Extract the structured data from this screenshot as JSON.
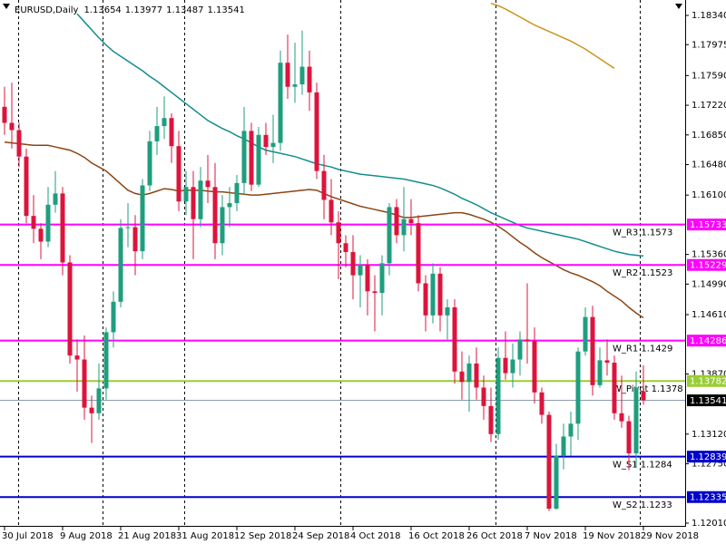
{
  "chart_data": {
    "type": "candlestick",
    "title": "EURUSD,Daily",
    "categories": [
      "30 Jul 2018",
      null,
      null,
      null,
      null,
      null,
      null,
      null,
      "9 Aug 2018",
      null,
      null,
      null,
      null,
      null,
      null,
      null,
      "21 Aug 2018",
      null,
      null,
      null,
      null,
      null,
      null,
      null,
      "31 Aug 2018",
      null,
      null,
      null,
      null,
      null,
      null,
      null,
      "12 Sep 2018",
      null,
      null,
      null,
      null,
      null,
      null,
      null,
      "24 Sep 2018",
      null,
      null,
      null,
      null,
      null,
      null,
      null,
      "4 Oct 2018",
      null,
      null,
      null,
      null,
      null,
      null,
      null,
      "16 Oct 2018",
      null,
      null,
      null,
      null,
      null,
      null,
      null,
      "26 Oct 2018",
      null,
      null,
      null,
      null,
      null,
      null,
      null,
      "7 Nov 2018",
      null,
      null,
      null,
      null,
      null,
      null,
      null,
      "19 Nov 2018",
      null,
      null,
      null,
      null,
      null,
      null,
      null,
      "29 Nov 2018"
    ],
    "open": [
      1.172,
      1.17,
      1.1691,
      1.1658,
      1.1584,
      1.1568,
      1.1552,
      1.1598,
      1.1612,
      1.1526,
      1.141,
      1.1405,
      1.1345,
      1.1338,
      1.1369,
      1.1439,
      1.1477,
      1.1569,
      1.157,
      1.154,
      1.1622,
      1.1677,
      1.1696,
      1.1706,
      1.1671,
      1.1602,
      1.162,
      1.158,
      1.1628,
      1.162,
      1.155,
      1.1595,
      1.16,
      1.1625,
      1.169,
      1.1623,
      1.1685,
      1.167,
      1.1675,
      1.1775,
      1.1745,
      1.1748,
      1.177,
      1.1738,
      1.164,
      1.1604,
      1.1576,
      1.155,
      1.1539,
      1.151,
      1.1523,
      1.149,
      1.1488,
      1.1525,
      1.1595,
      1.156,
      1.158,
      1.1575,
      1.15,
      1.146,
      1.1512,
      1.146,
      1.147,
      1.139,
      1.1377,
      1.14,
      1.137,
      1.1347,
      1.1312,
      1.1407,
      1.1388,
      1.1405,
      1.143,
      1.1428,
      1.1364,
      1.1336,
      1.1219,
      1.1285,
      1.1309,
      1.1325,
      1.1415,
      1.1458,
      1.1373,
      1.1404,
      1.1401,
      1.1338,
      1.1328,
      1.1288,
      1.13654
    ],
    "high": [
      1.1745,
      1.175,
      1.17,
      1.1668,
      1.161,
      1.1575,
      1.162,
      1.164,
      1.162,
      1.1535,
      1.143,
      1.1435,
      1.136,
      1.14,
      1.1445,
      1.149,
      1.158,
      1.16,
      1.1585,
      1.163,
      1.169,
      1.172,
      1.1733,
      1.1712,
      1.169,
      1.164,
      1.164,
      1.1645,
      1.166,
      1.165,
      1.161,
      1.162,
      1.1635,
      1.172,
      1.17,
      1.1695,
      1.17,
      1.171,
      1.179,
      1.181,
      1.18,
      1.1815,
      1.179,
      1.175,
      1.166,
      1.163,
      1.159,
      1.156,
      1.156,
      1.1535,
      1.153,
      1.151,
      1.1535,
      1.16,
      1.1605,
      1.162,
      1.1605,
      1.1585,
      1.151,
      1.1525,
      1.152,
      1.148,
      1.148,
      1.1415,
      1.141,
      1.142,
      1.1385,
      1.137,
      1.142,
      1.144,
      1.1425,
      1.144,
      1.15,
      1.1445,
      1.137,
      1.134,
      1.13,
      1.1325,
      1.134,
      1.142,
      1.147,
      1.1472,
      1.142,
      1.143,
      1.141,
      1.1385,
      1.1335,
      1.139,
      1.13977
    ],
    "low": [
      1.1685,
      1.1668,
      1.1645,
      1.1575,
      1.155,
      1.153,
      1.1545,
      1.1588,
      1.151,
      1.14,
      1.1365,
      1.133,
      1.1301,
      1.133,
      1.1355,
      1.142,
      1.147,
      1.1545,
      1.151,
      1.153,
      1.1615,
      1.166,
      1.168,
      1.165,
      1.159,
      1.1585,
      1.153,
      1.157,
      1.16,
      1.153,
      1.1535,
      1.157,
      1.159,
      1.161,
      1.1615,
      1.162,
      1.166,
      1.165,
      1.1665,
      1.173,
      1.1725,
      1.1735,
      1.1715,
      1.163,
      1.158,
      1.156,
      1.1505,
      1.152,
      1.148,
      1.147,
      1.146,
      1.144,
      1.146,
      1.151,
      1.155,
      1.154,
      1.156,
      1.149,
      1.144,
      1.145,
      1.144,
      1.143,
      1.1375,
      1.1355,
      1.134,
      1.1355,
      1.133,
      1.1302,
      1.1305,
      1.138,
      1.137,
      1.1385,
      1.14,
      1.135,
      1.1325,
      1.1216,
      1.1218,
      1.1268,
      1.1285,
      1.1305,
      1.141,
      1.136,
      1.137,
      1.1385,
      1.133,
      1.132,
      1.1267,
      1.127,
      1.13487
    ],
    "close": [
      1.17,
      1.1691,
      1.1658,
      1.1584,
      1.1568,
      1.1552,
      1.1598,
      1.1612,
      1.1526,
      1.141,
      1.1405,
      1.1345,
      1.1338,
      1.1369,
      1.1439,
      1.1477,
      1.1569,
      1.157,
      1.154,
      1.1622,
      1.1677,
      1.1696,
      1.1706,
      1.1671,
      1.1602,
      1.162,
      1.158,
      1.1628,
      1.162,
      1.155,
      1.1595,
      1.16,
      1.1625,
      1.169,
      1.1623,
      1.1685,
      1.167,
      1.1675,
      1.1775,
      1.1745,
      1.1748,
      1.177,
      1.1738,
      1.164,
      1.1604,
      1.1576,
      1.155,
      1.1539,
      1.151,
      1.1523,
      1.149,
      1.1488,
      1.1525,
      1.1595,
      1.156,
      1.158,
      1.1575,
      1.15,
      1.146,
      1.1512,
      1.146,
      1.147,
      1.139,
      1.1377,
      1.14,
      1.137,
      1.1347,
      1.1312,
      1.1407,
      1.1388,
      1.1405,
      1.143,
      1.1428,
      1.1364,
      1.1336,
      1.1219,
      1.1285,
      1.1309,
      1.1325,
      1.1415,
      1.1458,
      1.1373,
      1.1404,
      1.1401,
      1.1338,
      1.1328,
      1.1288,
      1.137,
      1.13541
    ],
    "up_color": "#1f9e7e",
    "down_color": "#dc143c",
    "indicators": [
      {
        "color": "#8b4513",
        "values": [
          1.1676,
          1.1675,
          1.1674,
          1.1673,
          1.1672,
          1.1672,
          1.1672,
          1.167,
          1.1668,
          1.1666,
          1.1662,
          1.1657,
          1.165,
          1.1645,
          1.164,
          1.1632,
          1.1624,
          1.1616,
          1.1612,
          1.161,
          1.1612,
          1.1615,
          1.1618,
          1.1617,
          1.1615,
          1.1616,
          1.1616,
          1.1616,
          1.1615,
          1.1614,
          1.1614,
          1.1613,
          1.1612,
          1.1611,
          1.161,
          1.161,
          1.1611,
          1.1612,
          1.1613,
          1.1614,
          1.1615,
          1.1616,
          1.1617,
          1.1616,
          1.1612,
          1.1608,
          1.1605,
          1.1602,
          1.1599,
          1.1596,
          1.1594,
          1.1592,
          1.159,
          1.1588,
          1.1585,
          1.1582,
          1.1582,
          1.1583,
          1.1584,
          1.1585,
          1.1586,
          1.1587,
          1.1588,
          1.1588,
          1.1586,
          1.1583,
          1.158,
          1.1576,
          1.1571,
          1.1565,
          1.1558,
          1.1551,
          1.1545,
          1.1538,
          1.1532,
          1.1527,
          1.1522,
          1.1517,
          1.1513,
          1.151,
          1.1506,
          1.1502,
          1.1497,
          1.149,
          1.1484,
          1.1478,
          1.147,
          1.1463,
          1.1457
        ]
      },
      {
        "color": "#138d8d",
        "values": [
          null,
          null,
          null,
          null,
          null,
          null,
          null,
          null,
          null,
          null,
          1.1836,
          1.1826,
          1.1816,
          1.1806,
          1.1797,
          1.1789,
          1.1783,
          1.1777,
          1.1771,
          1.1765,
          1.1758,
          1.1752,
          1.1745,
          1.1738,
          1.1731,
          1.1724,
          1.1717,
          1.171,
          1.1703,
          1.1698,
          1.1693,
          1.1689,
          1.1684,
          1.168,
          1.1675,
          1.167,
          1.1666,
          1.1664,
          1.1662,
          1.166,
          1.1658,
          1.1655,
          1.1652,
          1.1649,
          1.1647,
          1.1645,
          1.1642,
          1.164,
          1.1638,
          1.1636,
          1.1635,
          1.1634,
          1.1633,
          1.1632,
          1.1631,
          1.163,
          1.1628,
          1.1626,
          1.1624,
          1.1622,
          1.1619,
          1.1615,
          1.1611,
          1.1606,
          1.1602,
          1.1598,
          1.1593,
          1.1588,
          1.1584,
          1.158,
          1.1576,
          1.1572,
          1.1569,
          1.1567,
          1.1565,
          1.1563,
          1.1561,
          1.1559,
          1.1557,
          1.1555,
          1.1552,
          1.1549,
          1.1546,
          1.1543,
          1.154,
          1.1538,
          1.1536,
          1.1535,
          1.1534
        ]
      },
      {
        "color": "#c8961e",
        "values": [
          null,
          null,
          null,
          null,
          null,
          null,
          null,
          null,
          null,
          null,
          null,
          null,
          null,
          null,
          null,
          null,
          null,
          null,
          null,
          null,
          null,
          null,
          null,
          null,
          null,
          null,
          null,
          null,
          null,
          null,
          null,
          null,
          null,
          null,
          null,
          null,
          null,
          null,
          null,
          null,
          null,
          null,
          null,
          null,
          null,
          null,
          null,
          null,
          null,
          null,
          null,
          null,
          null,
          null,
          null,
          null,
          null,
          null,
          null,
          null,
          null,
          null,
          null,
          null,
          null,
          null,
          null,
          1.1849,
          1.1846,
          1.1842,
          1.1837,
          1.1832,
          1.1827,
          1.1822,
          1.1818,
          1.1814,
          1.181,
          1.1806,
          1.1802,
          1.1797,
          1.1792,
          1.1786,
          1.178,
          1.1774,
          1.1768,
          null,
          null,
          null,
          null
        ]
      }
    ],
    "levels": [
      {
        "label": "W_R3 1.1573",
        "value": 1.15733,
        "color": "#ff00ff"
      },
      {
        "label": "W_R2 1.1523",
        "value": 1.15229,
        "color": "#ff00ff"
      },
      {
        "label": "W_R1 1.1429",
        "value": 1.14286,
        "color": "#ff00ff"
      },
      {
        "label": "W_Pivot 1.1378",
        "value": 1.13782,
        "color": "#9acd32"
      },
      {
        "label": "W_S1 1.1284",
        "value": 1.12839,
        "color": "#0000cd"
      },
      {
        "label": "W_S2 1.1233",
        "value": 1.12335,
        "color": "#0000cd"
      }
    ],
    "ylim": [
      1.11976,
      1.18532
    ],
    "yticks": [
      {
        "value": 1.1834,
        "label": "1.18340"
      },
      {
        "value": 1.17975,
        "label": "1.17975"
      },
      {
        "value": 1.1759,
        "label": "1.17590"
      },
      {
        "value": 1.1722,
        "label": "1.17220"
      },
      {
        "value": 1.1685,
        "label": "1.16850"
      },
      {
        "value": 1.1648,
        "label": "1.16480"
      },
      {
        "value": 1.161,
        "label": "1.16100"
      },
      {
        "value": 1.1536,
        "label": "1.15360"
      },
      {
        "value": 1.1499,
        "label": "1.14990"
      },
      {
        "value": 1.1461,
        "label": "1.14610"
      },
      {
        "value": 1.1387,
        "label": "1.13870"
      },
      {
        "value": 1.1312,
        "label": "1.13120"
      },
      {
        "value": 1.1275,
        "label": "1.12750"
      },
      {
        "value": 1.1201,
        "label": "1.12010"
      }
    ]
  }
}
